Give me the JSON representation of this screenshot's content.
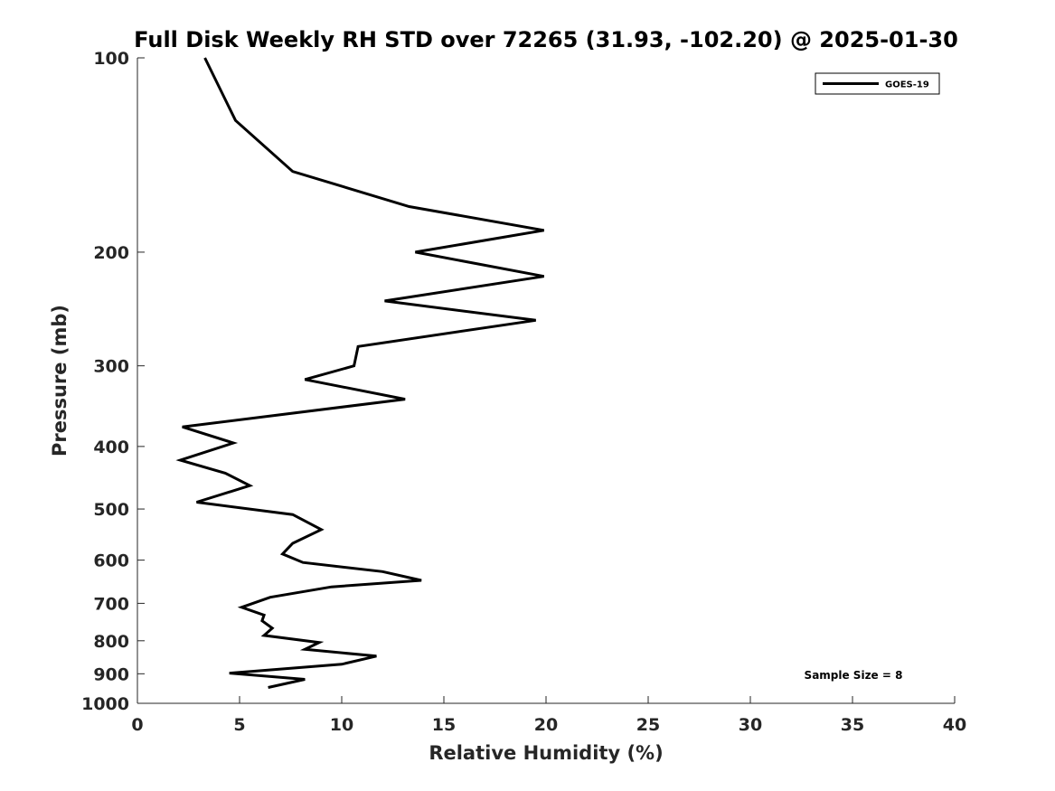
{
  "chart_data": {
    "type": "line",
    "title": "Full Disk Weekly RH STD over 72265 (31.93, -102.20) @ 2025-01-30",
    "xlabel": "Relative Humidity (%)",
    "ylabel": "Pressure (mb)",
    "xlim": [
      0,
      40
    ],
    "ylim": [
      100,
      1000
    ],
    "yscale": "log",
    "y_reversed": true,
    "xticks": [
      0,
      5,
      10,
      15,
      20,
      25,
      30,
      35,
      40
    ],
    "yticks": [
      100,
      200,
      300,
      400,
      500,
      600,
      700,
      800,
      900,
      1000
    ],
    "grid": false,
    "legend_position": "top-right",
    "annotation": "Sample Size = 8",
    "series": [
      {
        "name": "GOES-19",
        "color": "#000000",
        "points": [
          [
            3.3,
            100
          ],
          [
            4.8,
            125
          ],
          [
            7.6,
            150
          ],
          [
            13.3,
            170
          ],
          [
            19.9,
            185
          ],
          [
            13.6,
            200
          ],
          [
            19.9,
            218
          ],
          [
            12.1,
            238
          ],
          [
            19.5,
            255
          ],
          [
            10.8,
            280
          ],
          [
            10.6,
            300
          ],
          [
            8.2,
            315
          ],
          [
            13.1,
            338
          ],
          [
            2.2,
            373
          ],
          [
            4.7,
            395
          ],
          [
            2.1,
            420
          ],
          [
            4.3,
            440
          ],
          [
            5.5,
            460
          ],
          [
            2.9,
            488
          ],
          [
            7.6,
            510
          ],
          [
            9.0,
            538
          ],
          [
            7.6,
            565
          ],
          [
            7.1,
            587
          ],
          [
            8.1,
            605
          ],
          [
            12.0,
            625
          ],
          [
            13.9,
            645
          ],
          [
            9.5,
            660
          ],
          [
            6.5,
            685
          ],
          [
            5.1,
            710
          ],
          [
            6.2,
            730
          ],
          [
            6.1,
            745
          ],
          [
            6.6,
            765
          ],
          [
            6.2,
            785
          ],
          [
            8.9,
            805
          ],
          [
            8.2,
            825
          ],
          [
            11.7,
            845
          ],
          [
            10.0,
            870
          ],
          [
            4.5,
            898
          ],
          [
            8.2,
            918
          ],
          [
            6.4,
            945
          ]
        ]
      }
    ]
  }
}
